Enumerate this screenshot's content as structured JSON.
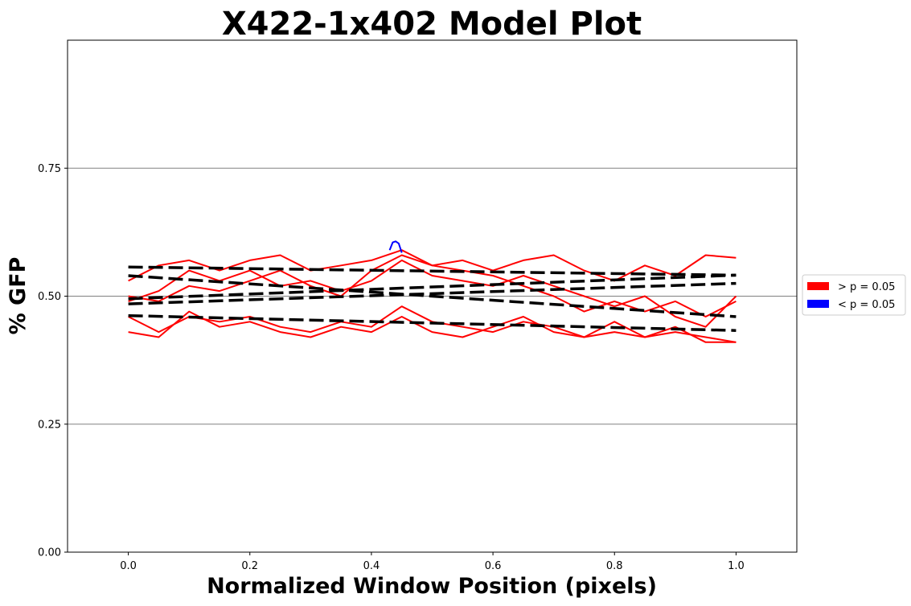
{
  "chart_data": {
    "type": "line",
    "title": "X422-1x402 Model Plot",
    "xlabel": "Normalized Window Position (pixels)",
    "ylabel": "% GFP",
    "xlim": [
      -0.1,
      1.1
    ],
    "ylim": [
      0.0,
      1.0
    ],
    "xticks": [
      "0.0",
      "0.2",
      "0.4",
      "0.6",
      "0.8",
      "1.0"
    ],
    "yticks": [
      "0.00",
      "0.25",
      "0.50",
      "0.75"
    ],
    "grid": "horizontal",
    "legend_position": "right-outside",
    "legend": [
      {
        "label": "> p = 0.05",
        "color": "#ff0000"
      },
      {
        "label": "< p = 0.05",
        "color": "#0000ff"
      }
    ],
    "series": [
      {
        "color": "#ff0000",
        "x": [
          0.0,
          0.05,
          0.1,
          0.15,
          0.2,
          0.25,
          0.3,
          0.35,
          0.4,
          0.45,
          0.5,
          0.55,
          0.6,
          0.65,
          0.7,
          0.75,
          0.8,
          0.85,
          0.9,
          0.95,
          1.0
        ],
        "y": [
          0.53,
          0.56,
          0.57,
          0.55,
          0.57,
          0.58,
          0.55,
          0.56,
          0.57,
          0.59,
          0.56,
          0.57,
          0.55,
          0.57,
          0.58,
          0.55,
          0.53,
          0.56,
          0.54,
          0.58,
          0.575
        ]
      },
      {
        "color": "#ff0000",
        "x": [
          0.0,
          0.05,
          0.1,
          0.15,
          0.2,
          0.25,
          0.3,
          0.35,
          0.4,
          0.45,
          0.5,
          0.55,
          0.6,
          0.65,
          0.7,
          0.75,
          0.8,
          0.85,
          0.9,
          0.95,
          1.0
        ],
        "y": [
          0.49,
          0.51,
          0.55,
          0.53,
          0.55,
          0.52,
          0.53,
          0.51,
          0.53,
          0.57,
          0.54,
          0.53,
          0.52,
          0.54,
          0.52,
          0.5,
          0.48,
          0.5,
          0.46,
          0.44,
          0.5
        ]
      },
      {
        "color": "#ff0000",
        "x": [
          0.0,
          0.05,
          0.1,
          0.15,
          0.2,
          0.25,
          0.3,
          0.35,
          0.4,
          0.45,
          0.5,
          0.55,
          0.6,
          0.65,
          0.7,
          0.75,
          0.8,
          0.85,
          0.9,
          0.95,
          1.0
        ],
        "y": [
          0.46,
          0.43,
          0.46,
          0.45,
          0.46,
          0.44,
          0.43,
          0.45,
          0.44,
          0.48,
          0.45,
          0.44,
          0.43,
          0.45,
          0.44,
          0.42,
          0.43,
          0.42,
          0.44,
          0.41,
          0.41
        ]
      },
      {
        "color": "#ff0000",
        "x": [
          0.0,
          0.05,
          0.1,
          0.15,
          0.2,
          0.25,
          0.3,
          0.35,
          0.4,
          0.45,
          0.5,
          0.55,
          0.6,
          0.65,
          0.7,
          0.75,
          0.8,
          0.85,
          0.9,
          0.95,
          1.0
        ],
        "y": [
          0.43,
          0.42,
          0.47,
          0.44,
          0.45,
          0.43,
          0.42,
          0.44,
          0.43,
          0.46,
          0.43,
          0.42,
          0.44,
          0.46,
          0.43,
          0.42,
          0.45,
          0.42,
          0.43,
          0.42,
          0.41
        ]
      },
      {
        "color": "#ff0000",
        "x": [
          0.0,
          0.05,
          0.1,
          0.15,
          0.2,
          0.25,
          0.3,
          0.35,
          0.4,
          0.45,
          0.5,
          0.55,
          0.6,
          0.65,
          0.7,
          0.75,
          0.8,
          0.85,
          0.9,
          0.95,
          1.0
        ],
        "y": [
          0.5,
          0.49,
          0.52,
          0.51,
          0.53,
          0.55,
          0.52,
          0.5,
          0.55,
          0.58,
          0.56,
          0.55,
          0.54,
          0.52,
          0.5,
          0.47,
          0.49,
          0.47,
          0.49,
          0.46,
          0.49
        ]
      },
      {
        "color": "#0000ff",
        "x": [
          0.43,
          0.435,
          0.44,
          0.445,
          0.45
        ],
        "y": [
          0.59,
          0.605,
          0.607,
          0.603,
          0.585
        ]
      },
      {
        "color": "#000000",
        "dashed": true,
        "x": [
          0.0,
          1.0
        ],
        "y": [
          0.557,
          0.541
        ]
      },
      {
        "color": "#000000",
        "dashed": true,
        "x": [
          0.0,
          1.0
        ],
        "y": [
          0.54,
          0.46
        ]
      },
      {
        "color": "#000000",
        "dashed": true,
        "x": [
          0.0,
          1.0
        ],
        "y": [
          0.495,
          0.541
        ]
      },
      {
        "color": "#000000",
        "dashed": true,
        "x": [
          0.0,
          1.0
        ],
        "y": [
          0.485,
          0.525
        ]
      },
      {
        "color": "#000000",
        "dashed": true,
        "x": [
          0.0,
          1.0
        ],
        "y": [
          0.462,
          0.433
        ]
      }
    ]
  }
}
